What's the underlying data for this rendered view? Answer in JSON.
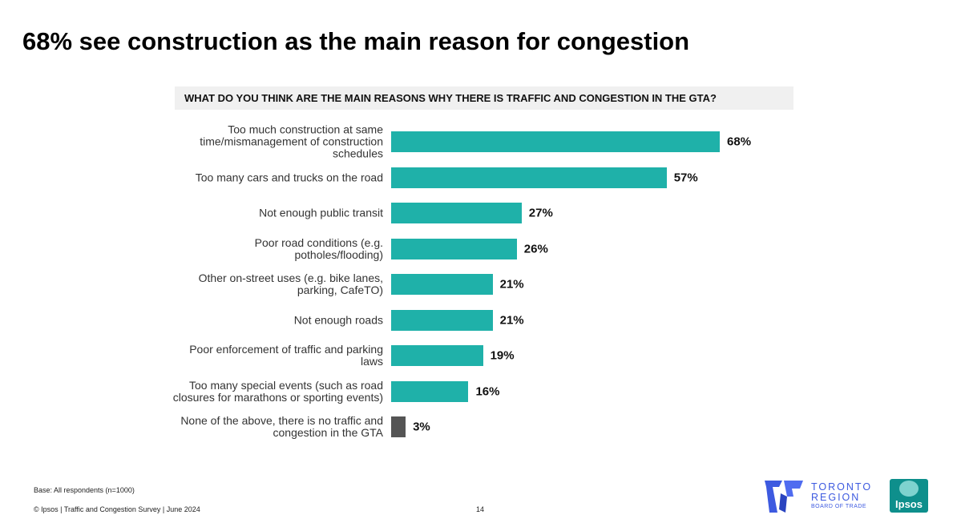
{
  "chart_data": {
    "type": "bar",
    "orientation": "horizontal",
    "title": "68% see construction as the main reason for congestion",
    "subtitle": "WHAT DO YOU THINK ARE THE MAIN REASONS WHY THERE IS TRAFFIC AND CONGESTION IN THE GTA?",
    "categories": [
      "Too much construction at same time/mismanagement of construction schedules",
      "Too many cars and trucks on the road",
      "Not enough public transit",
      "Poor road conditions (e.g. potholes/flooding)",
      "Other on-street uses (e.g. bike lanes, parking, CafeTO)",
      "Not enough roads",
      "Poor enforcement of traffic and parking laws",
      "Too many special events (such as road closures for marathons or sporting events)",
      "None of the above, there is no traffic and congestion in the GTA"
    ],
    "values": [
      68,
      57,
      27,
      26,
      21,
      21,
      19,
      16,
      3
    ],
    "value_labels": [
      "68%",
      "57%",
      "27%",
      "26%",
      "21%",
      "21%",
      "19%",
      "16%",
      "3%"
    ],
    "colors": [
      "#1fb1a9",
      "#1fb1a9",
      "#1fb1a9",
      "#1fb1a9",
      "#1fb1a9",
      "#1fb1a9",
      "#1fb1a9",
      "#1fb1a9",
      "#555555"
    ]
  },
  "footer": {
    "base": "Base: All respondents (n=1000)",
    "source": "© Ipsos | Traffic and Congestion Survey | June 2024",
    "page": "14",
    "logo_line1": "TORONTO",
    "logo_line2": "REGION",
    "logo_line3": "BOARD OF TRADE",
    "logo_ipsos": "Ipsos"
  }
}
